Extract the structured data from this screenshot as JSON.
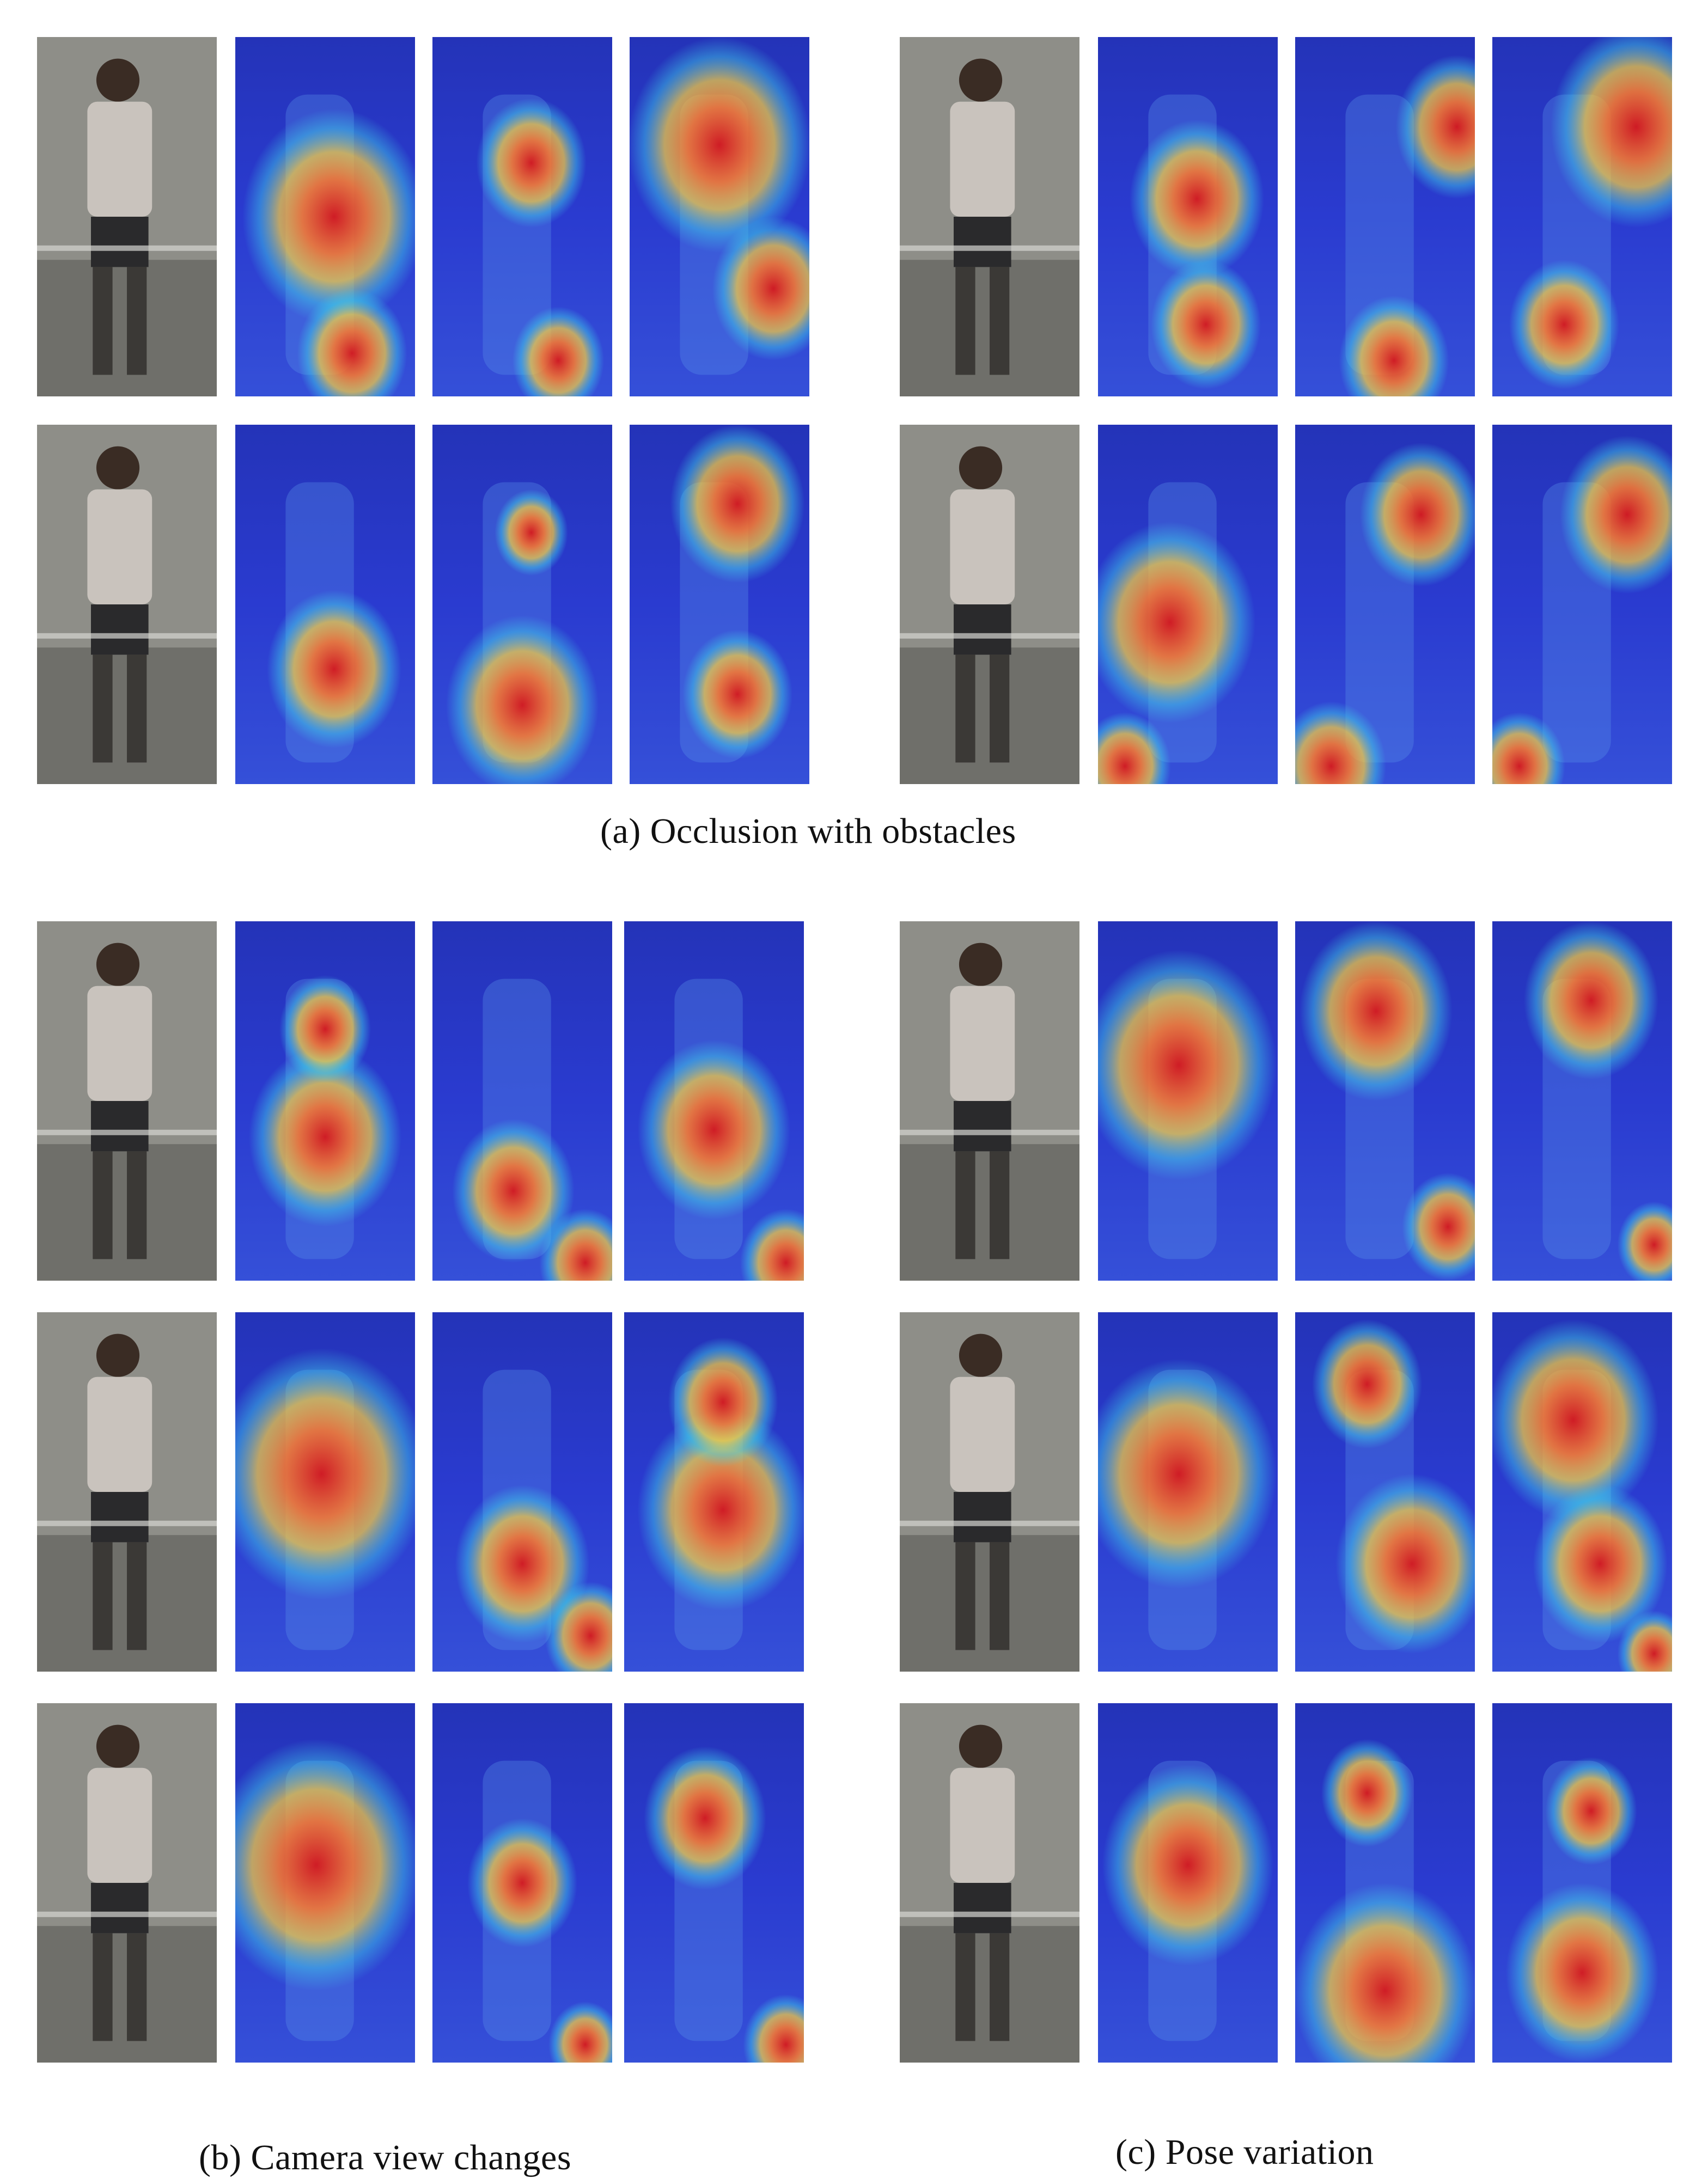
{
  "figure": {
    "captions": {
      "a": "(a) Occlusion with obstacles",
      "b": "(b) Camera view changes",
      "c": "(c)  Pose variation"
    },
    "colors": {
      "heat_low": "#2a3bd0",
      "heat_mid": "#3fd0e8",
      "heat_warm": "#ffd23a",
      "heat_hot": "#d7191c",
      "background": "#ffffff"
    },
    "groups": [
      {
        "id": "occlusion-left",
        "section": "a",
        "rows": [
          {
            "hot": [
              [
                0.55,
                0.5,
                0.3
              ],
              [
                0.65,
                0.88,
                0.18
              ]
            ],
            "b": [
              [
                0.55,
                0.35,
                0.18
              ],
              [
                0.7,
                0.9,
                0.15
              ]
            ],
            "c": [
              [
                0.5,
                0.3,
                0.3
              ],
              [
                0.8,
                0.7,
                0.2
              ]
            ]
          },
          {
            "hot": [
              [
                0.55,
                0.68,
                0.22
              ]
            ],
            "b": [
              [
                0.5,
                0.78,
                0.25
              ],
              [
                0.55,
                0.3,
                0.12
              ]
            ],
            "c": [
              [
                0.6,
                0.22,
                0.22
              ],
              [
                0.6,
                0.75,
                0.18
              ]
            ]
          }
        ]
      },
      {
        "id": "occlusion-right",
        "section": "a",
        "rows": [
          {
            "hot": [
              [
                0.55,
                0.45,
                0.22
              ],
              [
                0.6,
                0.8,
                0.18
              ]
            ],
            "b": [
              [
                0.9,
                0.25,
                0.2
              ],
              [
                0.55,
                0.9,
                0.18
              ]
            ],
            "c": [
              [
                0.8,
                0.25,
                0.28
              ],
              [
                0.4,
                0.8,
                0.18
              ]
            ]
          },
          {
            "hot": [
              [
                0.4,
                0.55,
                0.28
              ],
              [
                0.15,
                0.95,
                0.15
              ]
            ],
            "b": [
              [
                0.7,
                0.25,
                0.2
              ],
              [
                0.2,
                0.95,
                0.18
              ]
            ],
            "c": [
              [
                0.75,
                0.25,
                0.22
              ],
              [
                0.15,
                0.95,
                0.15
              ]
            ]
          }
        ]
      },
      {
        "id": "camera-view",
        "section": "b",
        "rows": [
          {
            "hot": [
              [
                0.5,
                0.6,
                0.25
              ],
              [
                0.5,
                0.3,
                0.15
              ]
            ],
            "b": [
              [
                0.45,
                0.75,
                0.2
              ],
              [
                0.85,
                0.95,
                0.15
              ]
            ],
            "c": [
              [
                0.5,
                0.58,
                0.25
              ],
              [
                0.9,
                0.95,
                0.15
              ]
            ]
          },
          {
            "hot": [
              [
                0.48,
                0.45,
                0.35
              ]
            ],
            "b": [
              [
                0.5,
                0.7,
                0.22
              ],
              [
                0.88,
                0.9,
                0.15
              ]
            ],
            "c": [
              [
                0.55,
                0.55,
                0.28
              ],
              [
                0.55,
                0.25,
                0.18
              ]
            ]
          },
          {
            "hot": [
              [
                0.45,
                0.45,
                0.35
              ]
            ],
            "b": [
              [
                0.5,
                0.5,
                0.18
              ],
              [
                0.85,
                0.95,
                0.12
              ]
            ],
            "c": [
              [
                0.45,
                0.32,
                0.2
              ],
              [
                0.9,
                0.95,
                0.14
              ]
            ]
          }
        ]
      },
      {
        "id": "pose-variation",
        "section": "c",
        "rows": [
          {
            "hot": [
              [
                0.45,
                0.4,
                0.32
              ]
            ],
            "b": [
              [
                0.45,
                0.25,
                0.25
              ],
              [
                0.85,
                0.85,
                0.15
              ]
            ],
            "c": [
              [
                0.55,
                0.22,
                0.22
              ],
              [
                0.9,
                0.9,
                0.12
              ]
            ]
          },
          {
            "hot": [
              [
                0.45,
                0.45,
                0.32
              ]
            ],
            "b": [
              [
                0.4,
                0.2,
                0.18
              ],
              [
                0.65,
                0.7,
                0.25
              ]
            ],
            "c": [
              [
                0.45,
                0.3,
                0.28
              ],
              [
                0.6,
                0.7,
                0.22
              ],
              [
                0.9,
                0.95,
                0.12
              ]
            ]
          },
          {
            "hot": [
              [
                0.5,
                0.45,
                0.28
              ]
            ],
            "b": [
              [
                0.5,
                0.8,
                0.3
              ],
              [
                0.4,
                0.25,
                0.15
              ]
            ],
            "c": [
              [
                0.5,
                0.75,
                0.25
              ],
              [
                0.55,
                0.3,
                0.15
              ]
            ]
          }
        ]
      }
    ]
  }
}
